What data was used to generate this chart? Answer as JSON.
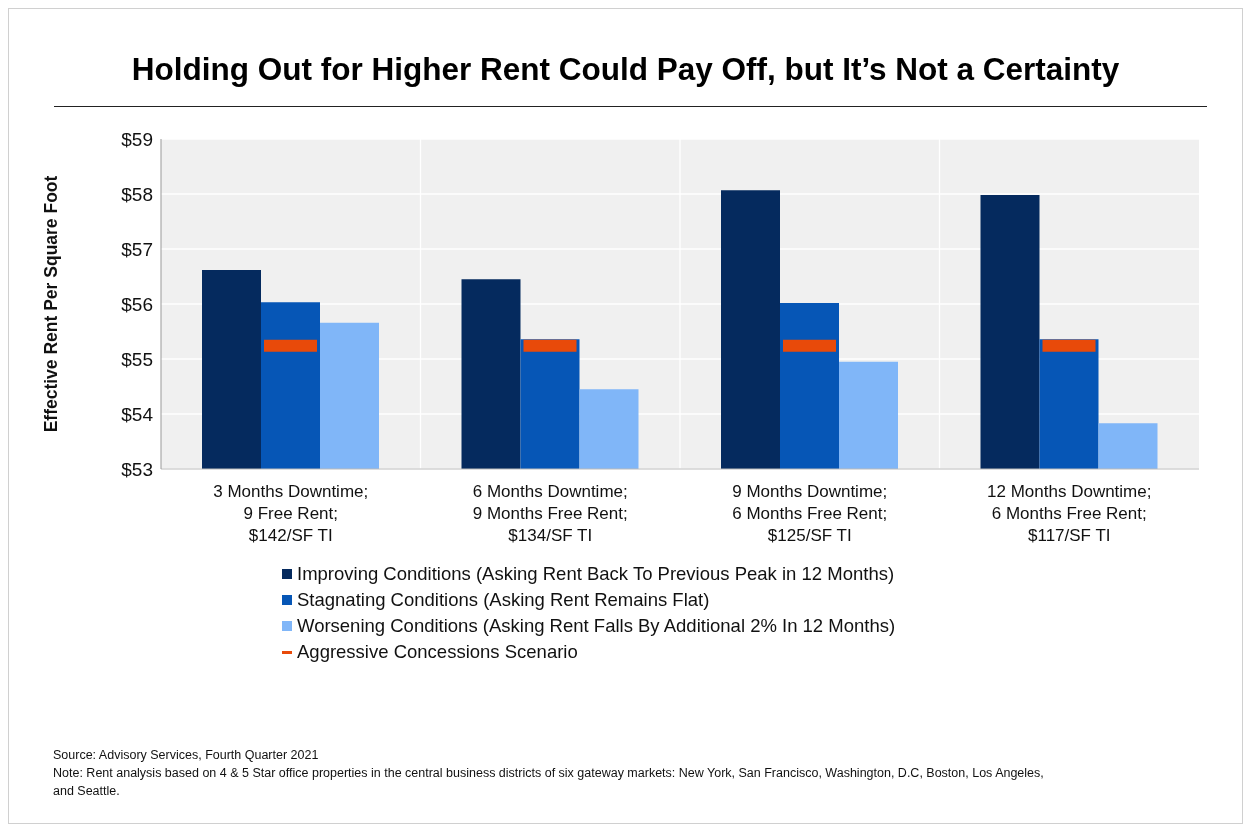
{
  "chart_data": {
    "type": "bar",
    "title": "Holding Out for Higher Rent Could Pay Off, but It’s Not a Certainty",
    "ylabel": "Effective Rent Per Square Foot",
    "categories": [
      "3 Months Downtime; 9 Free Rent; $142/SF TI",
      "6 Months Downtime; 9 Months Free Rent; $134/SF TI",
      "9 Months Downtime; 6 Months Free Rent; $125/SF TI",
      "12 Months Downtime; 6 Months Free Rent; $117/SF TI"
    ],
    "series": [
      {
        "name": "Improving Conditions (Asking Rent Back To Previous Peak in 12 Months)",
        "color": "#052a5e",
        "values": [
          56.62,
          56.45,
          58.07,
          57.98
        ]
      },
      {
        "name": "Stagnating Conditions (Asking Rent Remains Flat)",
        "color": "#0656b6",
        "values": [
          56.03,
          55.36,
          56.02,
          55.36
        ]
      },
      {
        "name": "Worsening Conditions (Asking Rent Falls By Additional 2% In 12 Months)",
        "color": "#80b6f8",
        "values": [
          55.66,
          54.45,
          54.95,
          53.83
        ]
      },
      {
        "name": "Aggressive Concessions Scenario",
        "type": "bar",
        "color": "#e84a0a",
        "base": [
          55.13,
          55.13,
          55.13,
          55.13
        ],
        "values": [
          0.22,
          0.22,
          0.22,
          0.22
        ]
      }
    ],
    "ylim": [
      53,
      59
    ],
    "yticks": [
      {
        "value": 53,
        "label": "$53"
      },
      {
        "value": 54,
        "label": "$54"
      },
      {
        "value": 55,
        "label": "$55"
      },
      {
        "value": 56,
        "label": "$56"
      },
      {
        "value": 57,
        "label": "$57"
      },
      {
        "value": 58,
        "label": "$58"
      },
      {
        "value": 59,
        "label": "$59"
      }
    ],
    "grid": true,
    "legend": "bottom",
    "annotations": [
      "Source: Advisory Services, Fourth Quarter 2021",
      "Note: Rent analysis based on 4 & 5 Star office properties in the central business districts of six gateway markets: New York, San Francisco, Washington, D.C, Boston, Los Angeles, and Seattle."
    ]
  }
}
